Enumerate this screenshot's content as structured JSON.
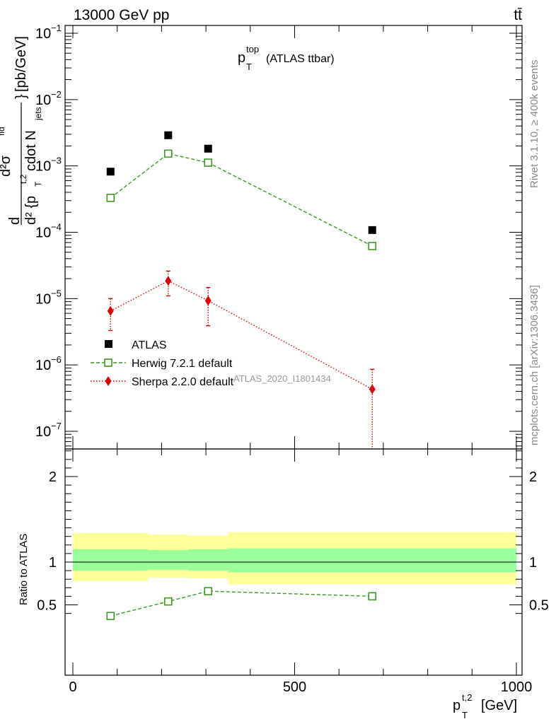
{
  "header": {
    "left": "13000 GeV pp",
    "right": "tt̄"
  },
  "side_labels": {
    "rivet": "Rivet 3.1.10, ≥ 400k events",
    "mcplots": "mcplots.cern.ch [arXiv:1306.3436]"
  },
  "chart_data": [
    {
      "type": "scatter",
      "panel": "main",
      "title_base": "p",
      "title_sub": "T",
      "title_sup": "top",
      "title_suffix": "(ATLAS ttbar)",
      "ylabel": "d d²σᵗᵈ / d² {pᵀᵗ² cdot Nⱼₑₜₛ} [pb/GeV]",
      "ylabel_parts": {
        "num": "d²σ",
        "num_sup": "fid",
        "den_a": "d² {p",
        "den_a_sub": "T",
        "den_a_sup": "t,2",
        "den_b": "cdot N",
        "den_b_sub": "jets",
        "lead_d": "d",
        "unit_a": "}",
        "unit_b": "[pb/GeV]"
      },
      "xlim": [
        -8,
        1000
      ],
      "ylim": [
        5.5e-08,
        0.125
      ],
      "y_log": true,
      "y_ticks": [
        {
          "v": 1e-07,
          "b": "10",
          "e": "−7"
        },
        {
          "v": 1e-06,
          "b": "10",
          "e": "−6"
        },
        {
          "v": 1e-05,
          "b": "10",
          "e": "−5"
        },
        {
          "v": 0.0001,
          "b": "10",
          "e": "−4"
        },
        {
          "v": 0.001,
          "b": "10",
          "e": "−3"
        },
        {
          "v": 0.01,
          "b": "10",
          "e": "−2"
        },
        {
          "v": 0.1,
          "b": "10",
          "e": "−1"
        }
      ],
      "watermark": "ATLAS_2020_I1801434",
      "legend_position": "lower-left",
      "series": [
        {
          "name": "ATLAS",
          "marker": "square-filled",
          "color": "#000000",
          "points": [
            {
              "x": 85,
              "y": 0.00082,
              "xlo": 0,
              "xhi": 170
            },
            {
              "x": 215,
              "y": 0.0029,
              "xlo": 170,
              "xhi": 260
            },
            {
              "x": 305,
              "y": 0.00182,
              "xlo": 260,
              "xhi": 350
            },
            {
              "x": 675,
              "y": 0.000108,
              "xlo": 350,
              "xhi": 1000
            }
          ]
        },
        {
          "name": "Herwig 7.2.1 default",
          "marker": "square-open",
          "line": "dashed",
          "color": "#3a9a1c",
          "points": [
            {
              "x": 85,
              "y": 0.00033
            },
            {
              "x": 215,
              "y": 0.00153
            },
            {
              "x": 305,
              "y": 0.00112
            },
            {
              "x": 675,
              "y": 6.2e-05
            }
          ]
        },
        {
          "name": "Sherpa 2.2.0 default",
          "marker": "diamond-filled",
          "line": "dotted",
          "color": "#e00000",
          "points": [
            {
              "x": 85,
              "y": 6.5e-06,
              "ylo": 3.3e-06,
              "yhi": 1e-05
            },
            {
              "x": 215,
              "y": 1.85e-05,
              "ylo": 1.1e-05,
              "yhi": 2.6e-05
            },
            {
              "x": 305,
              "y": 9.3e-06,
              "ylo": 3.9e-06,
              "yhi": 1.47e-05
            },
            {
              "x": 675,
              "y": 4.3e-07,
              "ylo": 1e-09,
              "yhi": 8.6e-07
            }
          ]
        }
      ]
    },
    {
      "type": "line",
      "panel": "ratio",
      "ylabel": "Ratio to ATLAS",
      "xlabel_base": "p",
      "xlabel_sub": "T",
      "xlabel_sup": "t,2",
      "xlabel_unit": "[GeV]",
      "xlim": [
        -8,
        1000
      ],
      "ylim": [
        0.35,
        2.35
      ],
      "x_ticks": [
        0,
        500,
        1000
      ],
      "y_ticks": [
        0.5,
        1,
        2
      ],
      "bands": [
        {
          "x0": 0,
          "x1": 170,
          "inner": [
            0.9,
            1.15
          ],
          "outer": [
            0.78,
            1.34
          ]
        },
        {
          "x0": 170,
          "x1": 260,
          "inner": [
            0.91,
            1.14
          ],
          "outer": [
            0.82,
            1.32
          ]
        },
        {
          "x0": 260,
          "x1": 350,
          "inner": [
            0.9,
            1.15
          ],
          "outer": [
            0.81,
            1.31
          ]
        },
        {
          "x0": 350,
          "x1": 1000,
          "inner": [
            0.88,
            1.16
          ],
          "outer": [
            0.74,
            1.35
          ]
        }
      ],
      "series": [
        {
          "name": "Herwig 7.2.1 default",
          "color": "#3a9a1c",
          "points": [
            {
              "x": 85,
              "y": 0.37,
              "ylo": 0.35,
              "yhi": 0.39
            },
            {
              "x": 215,
              "y": 0.54,
              "ylo": 0.53,
              "yhi": 0.55
            },
            {
              "x": 305,
              "y": 0.66,
              "ylo": 0.64,
              "yhi": 0.68
            },
            {
              "x": 675,
              "y": 0.6,
              "ylo": 0.56,
              "yhi": 0.64
            }
          ]
        }
      ]
    }
  ],
  "colors": {
    "band_inner": "#99ff99",
    "band_outer": "#ffff99",
    "herwig": "#3a9a1c",
    "sherpa": "#e00000",
    "watermark": "#999999",
    "side_text": "#888888"
  }
}
